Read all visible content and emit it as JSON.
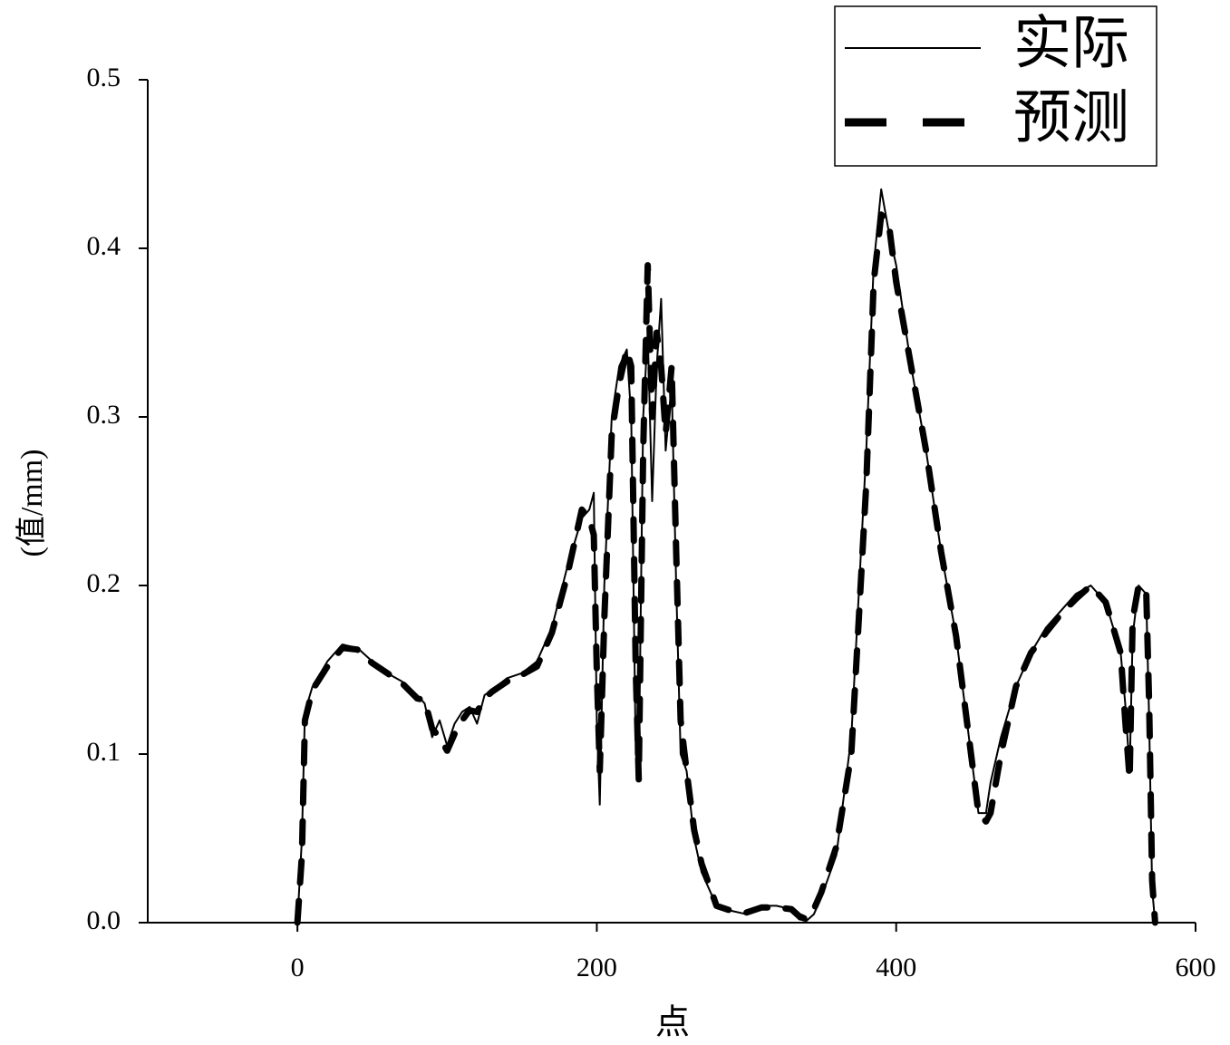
{
  "chart_data": {
    "type": "line",
    "xlabel": "点",
    "ylabel": "(值/mm)",
    "x": [
      0,
      3,
      5,
      10,
      20,
      30,
      40,
      50,
      60,
      70,
      80,
      85,
      90,
      95,
      100,
      105,
      110,
      115,
      120,
      125,
      130,
      140,
      150,
      160,
      170,
      180,
      190,
      195,
      198,
      200,
      202,
      205,
      210,
      215,
      220,
      223,
      226,
      228,
      231,
      234,
      237,
      240,
      243,
      246,
      250,
      253,
      256,
      260,
      265,
      270,
      280,
      290,
      300,
      310,
      320,
      330,
      335,
      340,
      345,
      350,
      360,
      370,
      380,
      385,
      390,
      395,
      400,
      410,
      420,
      430,
      440,
      450,
      455,
      460,
      463,
      470,
      480,
      490,
      500,
      510,
      520,
      530,
      540,
      550,
      553,
      556,
      558,
      562,
      567,
      569,
      571,
      573
    ],
    "series": [
      {
        "name": "实际",
        "color": "#000000",
        "dashed": false,
        "values": [
          0,
          0.05,
          0.125,
          0.14,
          0.155,
          0.165,
          0.163,
          0.155,
          0.148,
          0.143,
          0.135,
          0.13,
          0.11,
          0.12,
          0.105,
          0.118,
          0.125,
          0.128,
          0.118,
          0.135,
          0.138,
          0.145,
          0.148,
          0.155,
          0.175,
          0.21,
          0.24,
          0.245,
          0.255,
          0.12,
          0.07,
          0.2,
          0.3,
          0.33,
          0.34,
          0.3,
          0.1,
          0.09,
          0.3,
          0.35,
          0.25,
          0.33,
          0.37,
          0.28,
          0.32,
          0.2,
          0.1,
          0.09,
          0.05,
          0.03,
          0.01,
          0.007,
          0.005,
          0.01,
          0.01,
          0.008,
          0.002,
          0.001,
          0.005,
          0.015,
          0.04,
          0.11,
          0.28,
          0.39,
          0.435,
          0.41,
          0.39,
          0.33,
          0.28,
          0.22,
          0.17,
          0.1,
          0.065,
          0.065,
          0.083,
          0.11,
          0.14,
          0.16,
          0.175,
          0.185,
          0.195,
          0.2,
          0.19,
          0.16,
          0.13,
          0.09,
          0.17,
          0.2,
          0.195,
          0.12,
          0.02,
          0
        ]
      },
      {
        "name": "预测",
        "color": "#000000",
        "dashed": true,
        "values": [
          0,
          0.04,
          0.12,
          0.138,
          0.152,
          0.163,
          0.162,
          0.154,
          0.148,
          0.142,
          0.133,
          0.132,
          0.115,
          0.11,
          0.102,
          0.112,
          0.12,
          0.126,
          0.125,
          0.133,
          0.137,
          0.143,
          0.147,
          0.152,
          0.172,
          0.205,
          0.245,
          0.24,
          0.23,
          0.15,
          0.09,
          0.18,
          0.29,
          0.32,
          0.34,
          0.33,
          0.15,
          0.085,
          0.28,
          0.39,
          0.3,
          0.35,
          0.33,
          0.29,
          0.33,
          0.22,
          0.12,
          0.09,
          0.055,
          0.035,
          0.01,
          0.007,
          0.006,
          0.009,
          0.009,
          0.008,
          0.004,
          0.002,
          0.008,
          0.018,
          0.045,
          0.1,
          0.26,
          0.38,
          0.42,
          0.415,
          0.38,
          0.33,
          0.28,
          0.22,
          0.17,
          0.1,
          0.065,
          0.06,
          0.065,
          0.1,
          0.14,
          0.16,
          0.172,
          0.183,
          0.192,
          0.2,
          0.19,
          0.16,
          0.12,
          0.085,
          0.18,
          0.2,
          0.198,
          0.13,
          0.025,
          0
        ]
      }
    ],
    "xlim": [
      -100,
      600
    ],
    "xticks": [
      0,
      200,
      400,
      600
    ],
    "ylim": [
      0,
      0.5
    ],
    "yticks": [
      {
        "value": 0,
        "label": "0.0"
      },
      0.1,
      0.2,
      0.3,
      0.4,
      0.5
    ],
    "legend": "top-right"
  }
}
